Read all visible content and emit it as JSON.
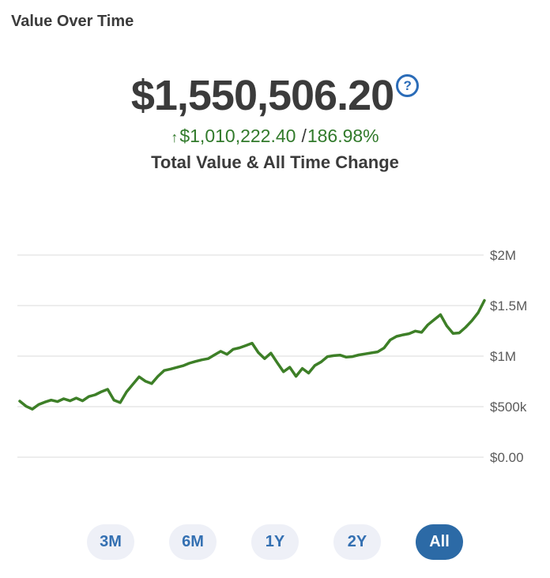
{
  "header": {
    "title": "Value Over Time"
  },
  "summary": {
    "total_value": "$1,550,506.20",
    "help_icon_glyph": "?",
    "change_arrow": "↑",
    "change_amount": "$1,010,222.40",
    "change_separator": "/",
    "change_percent": "186.98%",
    "caption": "Total Value & All Time Change"
  },
  "chart_data": {
    "type": "line",
    "title": "Value Over Time",
    "xlabel": "",
    "ylabel": "",
    "unit": "USD (millions)",
    "ylim": [
      0,
      2
    ],
    "grid": true,
    "legend": false,
    "y_ticks": [
      {
        "label": "$2M",
        "value": 2
      },
      {
        "label": "$1.5M",
        "value": 1.5
      },
      {
        "label": "$1M",
        "value": 1
      },
      {
        "label": "$500k",
        "value": 0.5
      },
      {
        "label": "$0.00",
        "value": 0
      }
    ],
    "start_value_musd": 0.5403,
    "end_value_musd": 1.5505,
    "values_musd": [
      0.555,
      0.505,
      0.475,
      0.52,
      0.545,
      0.565,
      0.55,
      0.578,
      0.558,
      0.585,
      0.558,
      0.6,
      0.617,
      0.648,
      0.672,
      0.565,
      0.54,
      0.645,
      0.72,
      0.795,
      0.752,
      0.728,
      0.8,
      0.858,
      0.872,
      0.888,
      0.905,
      0.93,
      0.948,
      0.963,
      0.975,
      1.012,
      1.048,
      1.018,
      1.068,
      1.082,
      1.105,
      1.128,
      1.035,
      0.975,
      1.03,
      0.935,
      0.845,
      0.89,
      0.8,
      0.878,
      0.832,
      0.908,
      0.943,
      0.995,
      1.005,
      1.01,
      0.99,
      0.995,
      1.012,
      1.022,
      1.032,
      1.042,
      1.08,
      1.16,
      1.195,
      1.21,
      1.222,
      1.248,
      1.235,
      1.31,
      1.36,
      1.41,
      1.3,
      1.225,
      1.23,
      1.285,
      1.35,
      1.43,
      1.5505
    ]
  },
  "range_buttons": {
    "options": [
      {
        "label": "3M",
        "selected": false
      },
      {
        "label": "6M",
        "selected": false
      },
      {
        "label": "1Y",
        "selected": false
      },
      {
        "label": "2Y",
        "selected": false
      },
      {
        "label": "All",
        "selected": true
      }
    ]
  },
  "colors": {
    "line_green": "#3d7f27",
    "text_green": "#317a2b",
    "dark_text": "#3b3b3b",
    "accent_blue": "#2b6cb8",
    "pill_bg": "#eef0f7",
    "pill_text": "#3470b2",
    "pill_selected_bg": "#2c6aa6",
    "gridline": "#e7e7e7",
    "axis_text": "#5a5a5a"
  }
}
